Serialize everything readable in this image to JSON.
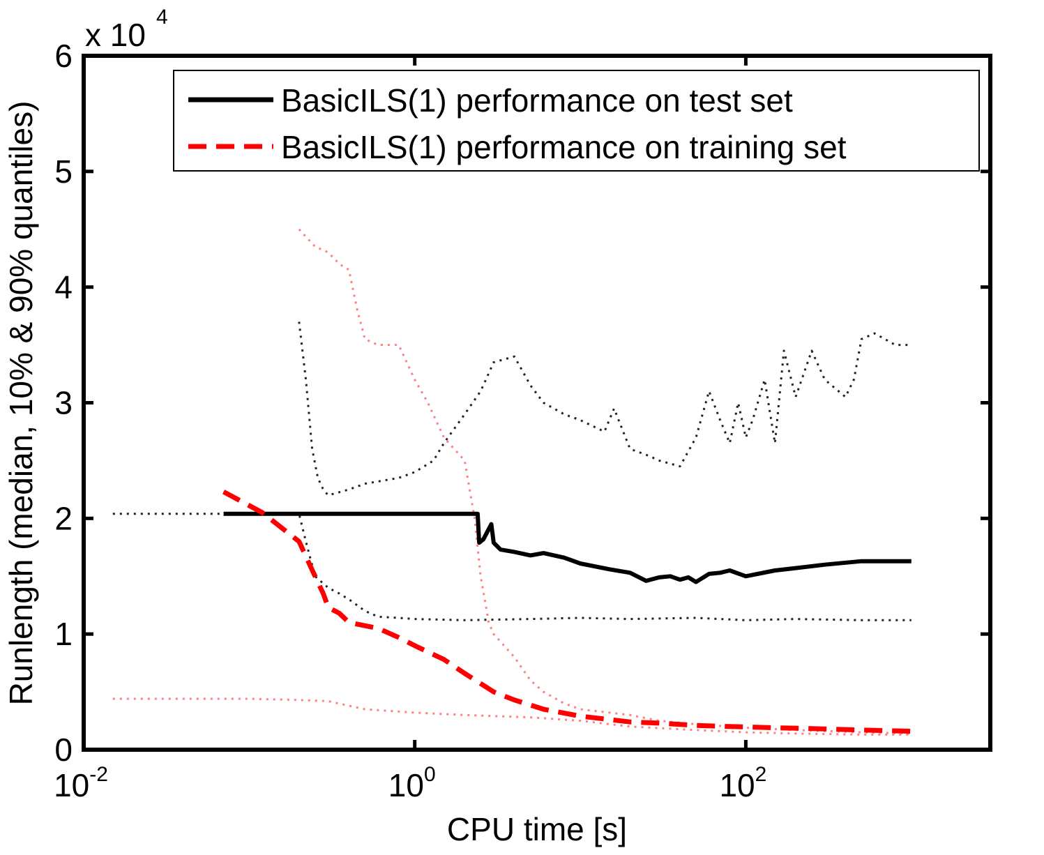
{
  "chart_data": {
    "type": "line",
    "xlabel": "CPU time [s]",
    "ylabel": "Runlength (median, 10% & 90% quantiles)",
    "xscale": "log",
    "xlim": [
      0.01,
      3000
    ],
    "ylim": [
      0,
      60000
    ],
    "y_multiplier_label": {
      "base": "x 10",
      "exponent": "4"
    },
    "x_ticks": [
      {
        "value": 0.01,
        "base": "10",
        "exponent": "-2"
      },
      {
        "value": 1,
        "base": "10",
        "exponent": "0"
      },
      {
        "value": 100,
        "base": "10",
        "exponent": "2"
      }
    ],
    "y_ticks": [
      {
        "value": 0,
        "label": "0"
      },
      {
        "value": 10000,
        "label": "1"
      },
      {
        "value": 20000,
        "label": "2"
      },
      {
        "value": 30000,
        "label": "3"
      },
      {
        "value": 40000,
        "label": "4"
      },
      {
        "value": 50000,
        "label": "5"
      },
      {
        "value": 60000,
        "label": "6"
      }
    ],
    "grid": false,
    "legend_position": "top-right",
    "series": [
      {
        "name": "BasicILS(1) performance on test set",
        "in_legend": true,
        "color": "#000000",
        "style": "solid",
        "x": [
          0.07,
          0.5,
          1.0,
          2.0,
          2.4,
          2.45,
          2.6,
          2.9,
          3.0,
          3.3,
          4,
          5,
          6,
          8,
          10,
          15,
          20,
          25,
          30,
          35,
          40,
          45,
          50,
          60,
          70,
          80,
          100,
          150,
          200,
          300,
          500,
          1000
        ],
        "y": [
          20400,
          20400,
          20400,
          20400,
          20400,
          17900,
          18200,
          19500,
          17900,
          17300,
          17100,
          16800,
          17000,
          16600,
          16100,
          15600,
          15300,
          14600,
          14900,
          15000,
          14700,
          14900,
          14500,
          15200,
          15300,
          15500,
          15000,
          15500,
          15700,
          16000,
          16300,
          16300
        ]
      },
      {
        "name": "BasicILS(1) performance on training set",
        "in_legend": true,
        "color": "#ff0000",
        "style": "dashed",
        "x": [
          0.07,
          0.12,
          0.2,
          0.25,
          0.28,
          0.3,
          0.35,
          0.4,
          0.6,
          0.8,
          1.0,
          1.5,
          2.0,
          3.0,
          4.0,
          6.0,
          10,
          20,
          30,
          50,
          80,
          150,
          300,
          500,
          1000
        ],
        "y": [
          22300,
          20500,
          18000,
          15000,
          13500,
          12300,
          11800,
          11000,
          10500,
          9700,
          9000,
          7800,
          6600,
          5000,
          4300,
          3500,
          2900,
          2400,
          2300,
          2100,
          2000,
          1900,
          1800,
          1700,
          1600
        ]
      },
      {
        "name": "test set 90% quantile",
        "in_legend": false,
        "color": "#222222",
        "style": "dotted",
        "x": [
          0.2,
          0.22,
          0.24,
          0.26,
          0.28,
          0.3,
          0.4,
          0.5,
          0.8,
          1.0,
          1.3,
          1.5,
          2.0,
          2.5,
          3.0,
          4.0,
          5.0,
          6.0,
          8.0,
          10,
          14,
          16,
          20,
          25,
          30,
          40,
          50,
          60,
          70,
          80,
          90,
          100,
          110,
          130,
          150,
          170,
          200,
          250,
          300,
          400,
          450,
          500,
          600,
          800,
          1000
        ],
        "y": [
          37000,
          32000,
          26000,
          23500,
          22500,
          22000,
          22500,
          23000,
          23500,
          24000,
          25000,
          26500,
          29000,
          31000,
          33500,
          34000,
          31500,
          30000,
          29000,
          28500,
          27500,
          29500,
          26000,
          25500,
          25000,
          24500,
          27000,
          31000,
          28500,
          26500,
          30000,
          27000,
          28500,
          32000,
          26500,
          34500,
          30500,
          34500,
          32000,
          30500,
          32000,
          35500,
          36000,
          35000,
          35000
        ]
      },
      {
        "name": "test set 10% quantile",
        "in_legend": false,
        "color": "#222222",
        "style": "dotted",
        "x": [
          0.015,
          0.05,
          0.1,
          0.2,
          0.22,
          0.25,
          0.3,
          0.35,
          0.4,
          0.5,
          0.6,
          0.8,
          1.0,
          2.0,
          5.0,
          10,
          20,
          50,
          100,
          200,
          500,
          1000
        ],
        "y": [
          20400,
          20400,
          20400,
          20400,
          18000,
          15000,
          14000,
          13500,
          13000,
          12000,
          11500,
          11400,
          11300,
          11200,
          11300,
          11400,
          11300,
          11400,
          11200,
          11300,
          11200,
          11200
        ]
      },
      {
        "name": "training set 90% quantile",
        "in_legend": false,
        "color": "#ff8080",
        "style": "dotted",
        "x": [
          0.2,
          0.25,
          0.3,
          0.35,
          0.4,
          0.45,
          0.5,
          0.6,
          0.8,
          1.0,
          1.2,
          1.5,
          2.0,
          2.3,
          2.5,
          2.8,
          3.0,
          4.0,
          5.0,
          6.0,
          8.0,
          10,
          20,
          30,
          50,
          100,
          200,
          500,
          1000
        ],
        "y": [
          45000,
          43500,
          43000,
          42000,
          41500,
          38000,
          35500,
          35000,
          35000,
          32000,
          30000,
          27000,
          25000,
          20000,
          15000,
          11000,
          10000,
          8000,
          6000,
          5000,
          4000,
          3500,
          3000,
          2500,
          2200,
          1900,
          1700,
          1500,
          1400
        ]
      },
      {
        "name": "training set 10% quantile",
        "in_legend": false,
        "color": "#ff8080",
        "style": "dotted",
        "x": [
          0.015,
          0.05,
          0.1,
          0.2,
          0.3,
          0.5,
          1.0,
          2.0,
          5.0,
          10,
          20,
          50,
          100,
          200,
          500,
          1000
        ],
        "y": [
          4400,
          4400,
          4400,
          4300,
          4200,
          3500,
          3200,
          3000,
          2800,
          2500,
          2000,
          1700,
          1500,
          1400,
          1300,
          1300
        ]
      }
    ]
  }
}
